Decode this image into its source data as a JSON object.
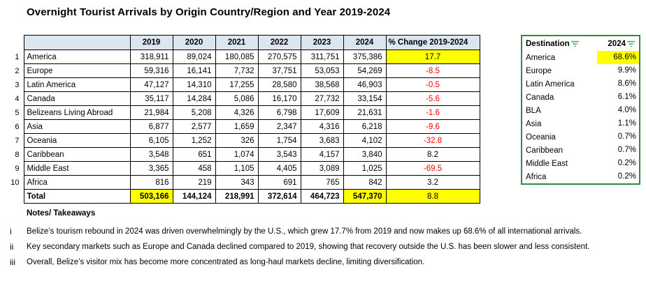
{
  "title": "Overnight Tourist Arrivals by Origin Country/Region and Year 2019-2024",
  "colors": {
    "highlight_yellow": "#ffff00",
    "header_fill_blue": "#dce6f1",
    "negative_red": "#ff0000",
    "share_table_border_green": "#2e8b46",
    "filter_icon_green": "#3aa64e"
  },
  "main_table": {
    "year_headers": [
      "2019",
      "2020",
      "2021",
      "2022",
      "2023",
      "2024"
    ],
    "pct_header": "% Change 2019-2024",
    "rows": [
      {
        "num": "1",
        "name": "America",
        "values": [
          "318,911",
          "89,024",
          "180,085",
          "270,575",
          "311,751",
          "375,386"
        ],
        "pct": "17.7",
        "pct_highlight": true
      },
      {
        "num": "2",
        "name": "Europe",
        "values": [
          "59,316",
          "16,141",
          "7,732",
          "37,751",
          "53,053",
          "54,269"
        ],
        "pct": "-8.5"
      },
      {
        "num": "3",
        "name": "Latin America",
        "values": [
          "47,127",
          "14,310",
          "17,255",
          "28,580",
          "38,568",
          "46,903"
        ],
        "pct": "-0.5"
      },
      {
        "num": "4",
        "name": "Canada",
        "values": [
          "35,117",
          "14,284",
          "5,086",
          "16,170",
          "27,732",
          "33,154"
        ],
        "pct": "-5.6"
      },
      {
        "num": "5",
        "name": "Belizeans Living Abroad",
        "values": [
          "21,984",
          "5,208",
          "4,326",
          "6,798",
          "17,609",
          "21,631"
        ],
        "pct": "-1.6"
      },
      {
        "num": "6",
        "name": "Asia",
        "values": [
          "6,877",
          "2,577",
          "1,659",
          "2,347",
          "4,316",
          "6,218"
        ],
        "pct": "-9.6"
      },
      {
        "num": "7",
        "name": "Oceania",
        "values": [
          "6,105",
          "1,252",
          "326",
          "1,754",
          "3,683",
          "4,102"
        ],
        "pct": "-32.8"
      },
      {
        "num": "8",
        "name": "Caribbean",
        "values": [
          "3,548",
          "651",
          "1,074",
          "3,543",
          "4,157",
          "3,840"
        ],
        "pct": "8.2"
      },
      {
        "num": "9",
        "name": "Middle East",
        "values": [
          "3,365",
          "458",
          "1,105",
          "4,405",
          "3,089",
          "1,025"
        ],
        "pct": "-69.5"
      },
      {
        "num": "10",
        "name": "Africa",
        "values": [
          "816",
          "219",
          "343",
          "691",
          "765",
          "842"
        ],
        "pct": "3.2"
      }
    ],
    "total_row": {
      "name": "Total",
      "values": [
        "503,166",
        "144,124",
        "218,991",
        "372,614",
        "464,723",
        "547,370"
      ],
      "highlight_cols": [
        0,
        5
      ],
      "pct": "8.8",
      "pct_highlight": true
    }
  },
  "share_table": {
    "headers": [
      "Destination",
      "2024"
    ],
    "rows": [
      {
        "label": "America",
        "value": "68.6%",
        "highlight": true
      },
      {
        "label": "Europe",
        "value": "9.9%"
      },
      {
        "label": "Latin America",
        "value": "8.6%"
      },
      {
        "label": "Canada",
        "value": "6.1%"
      },
      {
        "label": "BLA",
        "value": "4.0%"
      },
      {
        "label": "Asia",
        "value": "1.1%"
      },
      {
        "label": "Oceania",
        "value": "0.7%"
      },
      {
        "label": "Caribbean",
        "value": "0.7%"
      },
      {
        "label": "Middle East",
        "value": "0.2%"
      },
      {
        "label": "Africa",
        "value": "0.2%"
      }
    ]
  },
  "notes": {
    "heading": "Notes/ Takeaways",
    "items": [
      {
        "marker": "i",
        "text": "Belize’s tourism rebound in 2024 was driven overwhelmingly by the U.S., which grew 17.7% from 2019 and now makes up 68.6% of all international arrivals."
      },
      {
        "marker": "ii",
        "text": "Key secondary markets such as Europe and Canada declined compared to 2019, showing that recovery outside the U.S. has been slower and less consistent."
      },
      {
        "marker": "iii",
        "text": "Overall, Belize’s visitor mix has become more concentrated as long-haul markets decline, limiting diversification."
      }
    ]
  }
}
